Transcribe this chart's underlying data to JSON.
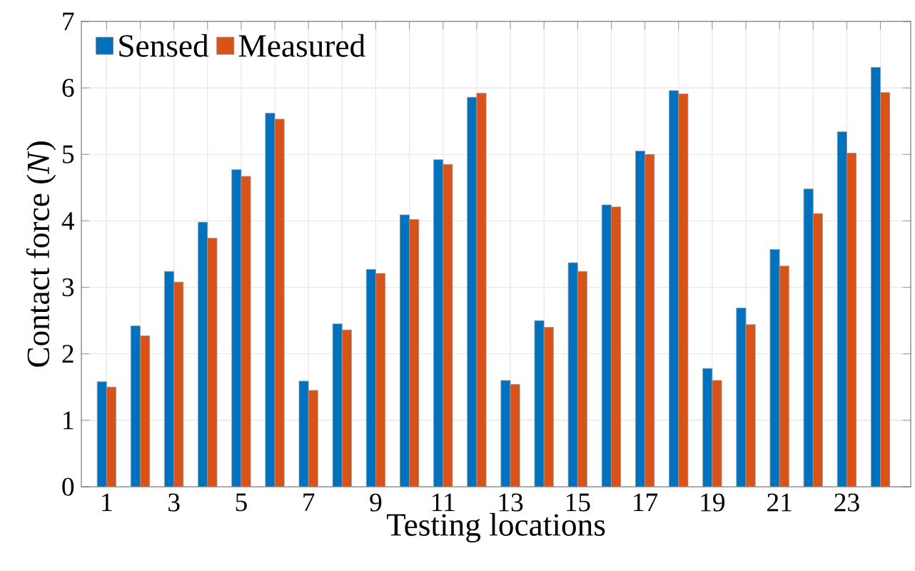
{
  "chart_data": {
    "type": "bar",
    "xlabel": "Testing locations",
    "ylabel": "Contact force (*N*)",
    "categories": [
      "1",
      null,
      "3",
      null,
      "5",
      null,
      "7",
      null,
      "9",
      null,
      "11",
      null,
      "13",
      null,
      "15",
      null,
      "17",
      null,
      "19",
      null,
      "21",
      null,
      "23",
      null
    ],
    "series": [
      {
        "name": "Sensed",
        "color": "#0072bd",
        "values": [
          1.58,
          2.42,
          3.24,
          3.98,
          4.77,
          5.62,
          1.59,
          2.45,
          3.27,
          4.09,
          4.92,
          5.86,
          1.6,
          2.5,
          3.37,
          4.24,
          5.05,
          5.96,
          1.78,
          2.69,
          3.57,
          4.48,
          5.34,
          6.31
        ]
      },
      {
        "name": "Measured",
        "color": "#d95319",
        "values": [
          1.5,
          2.27,
          3.08,
          3.74,
          4.67,
          5.53,
          1.45,
          2.36,
          3.21,
          4.02,
          4.85,
          5.92,
          1.54,
          2.4,
          3.24,
          4.21,
          5.0,
          5.91,
          1.6,
          2.44,
          3.32,
          4.11,
          5.02,
          5.93
        ]
      }
    ],
    "ylim": [
      0,
      7
    ],
    "yticks": [
      0,
      1,
      2,
      3,
      4,
      5,
      6,
      7
    ],
    "grid": true,
    "legend": "top left"
  }
}
